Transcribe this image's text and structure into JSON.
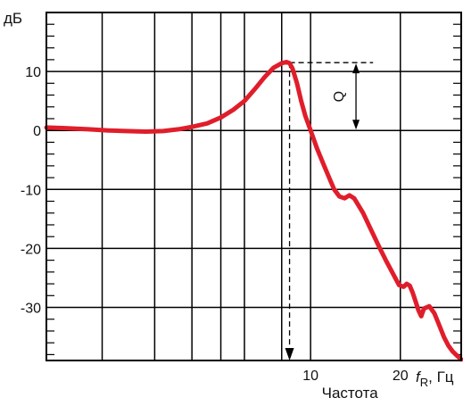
{
  "chart_data": {
    "type": "line",
    "ylabel": "дБ",
    "xlabel": "Частота",
    "x_axis_label": {
      "italic": "f",
      "subscript": "R",
      "unit": ", Гц"
    },
    "x_scale": "log",
    "xlim": [
      1.3,
      32
    ],
    "ylim": [
      -39,
      20
    ],
    "x_ticks": [
      10,
      20
    ],
    "y_ticks": [
      10,
      0,
      -10,
      -20,
      -30
    ],
    "x_gridlines": [
      2,
      3,
      4,
      5,
      6,
      8,
      10,
      20
    ],
    "y_gridlines": [
      20,
      10,
      0,
      -10,
      -20,
      -30
    ],
    "annotation_label": "Q",
    "peak": {
      "x": 8.5,
      "y": 11.5
    },
    "series": [
      {
        "color": "#e01e2b",
        "x": [
          1.3,
          1.5,
          1.8,
          2.1,
          2.4,
          2.8,
          3.2,
          3.6,
          4.0,
          4.5,
          5.0,
          5.5,
          6.0,
          6.5,
          7.0,
          7.5,
          8.0,
          8.3,
          8.5,
          8.7,
          9.0,
          9.3,
          9.6,
          10.0,
          10.5,
          11.0,
          11.5,
          12.0,
          12.5,
          13.0,
          13.5,
          14.0,
          15.0,
          16.0,
          17.0,
          18.0,
          19.0,
          19.8,
          20.5,
          21.0,
          21.5,
          22.0,
          22.5,
          23.0,
          23.5,
          24.0,
          25.0,
          26.0,
          27.0,
          28.0,
          29.0,
          30.0,
          31.0,
          32.0
        ],
        "y": [
          0.5,
          0.4,
          0.2,
          0.0,
          -0.1,
          -0.2,
          -0.1,
          0.2,
          0.6,
          1.2,
          2.2,
          3.5,
          5.0,
          7.0,
          9.0,
          10.6,
          11.4,
          11.6,
          11.4,
          10.5,
          8.0,
          5.0,
          2.5,
          0.0,
          -3.0,
          -5.5,
          -7.8,
          -10.0,
          -11.2,
          -11.5,
          -11.0,
          -11.5,
          -14.0,
          -17.0,
          -19.8,
          -22.3,
          -24.5,
          -26.2,
          -26.5,
          -26.0,
          -26.3,
          -27.5,
          -29.0,
          -30.5,
          -31.5,
          -30.2,
          -29.8,
          -31.0,
          -33.0,
          -35.0,
          -36.5,
          -37.5,
          -38.2,
          -38.8
        ]
      }
    ],
    "grid": true
  }
}
